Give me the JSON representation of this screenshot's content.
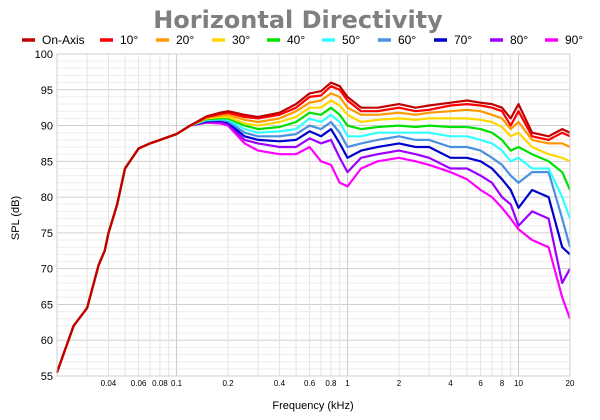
{
  "chart_data": {
    "type": "line",
    "title": "Horizontal Directivity",
    "xlabel": "Frequency (kHz)",
    "ylabel": "SPL (dB)",
    "xscale": "log",
    "xlim": [
      0.02,
      20
    ],
    "ylim": [
      55,
      100
    ],
    "yticks": [
      55,
      60,
      65,
      70,
      75,
      80,
      85,
      90,
      95,
      100
    ],
    "xtick_values": [
      0.04,
      0.06,
      0.08,
      0.1,
      0.2,
      0.4,
      0.6,
      0.8,
      1,
      2,
      4,
      6,
      8,
      10,
      20
    ],
    "xtick_labels": [
      "0.04",
      "0.06",
      "0.08",
      "0.1",
      "0.2",
      "0.4",
      "0.6",
      "0.8",
      "1",
      "2",
      "4",
      "6",
      "8",
      "10",
      "20"
    ],
    "grid": true,
    "legend_position": "top",
    "x": [
      0.02,
      0.025,
      0.03,
      0.035,
      0.038,
      0.04,
      0.045,
      0.05,
      0.06,
      0.07,
      0.08,
      0.1,
      0.12,
      0.15,
      0.18,
      0.2,
      0.25,
      0.3,
      0.4,
      0.5,
      0.6,
      0.7,
      0.8,
      0.9,
      1,
      1.2,
      1.5,
      2,
      2.5,
      3,
      4,
      5,
      6,
      7,
      8,
      9,
      10,
      12,
      15,
      18,
      20
    ],
    "series": [
      {
        "name": "On-Axis",
        "color": "#c00000",
        "values": [
          55.5,
          62,
          64.5,
          70.5,
          72.5,
          75,
          79,
          84,
          86.8,
          87.5,
          88,
          88.8,
          90,
          91.3,
          91.8,
          92,
          91.5,
          91.2,
          91.8,
          93,
          94.5,
          94.8,
          96,
          95.5,
          94,
          92.5,
          92.5,
          93,
          92.5,
          92.8,
          93.2,
          93.5,
          93.2,
          93,
          92.5,
          91,
          93,
          89,
          88.5,
          89.5,
          89
        ]
      },
      {
        "name": "10°",
        "color": "#ff0000",
        "values": [
          55.5,
          62,
          64.5,
          70.5,
          72.5,
          75,
          79,
          84,
          86.8,
          87.5,
          88,
          88.8,
          90,
          91.2,
          91.6,
          91.8,
          91.2,
          91,
          91.5,
          92.5,
          94,
          94.2,
          95.5,
          95,
          93.5,
          92,
          92,
          92.5,
          92,
          92.2,
          92.8,
          93,
          92.8,
          92.5,
          92,
          90,
          92,
          88.5,
          88,
          89,
          88.5
        ]
      },
      {
        "name": "20°",
        "color": "#ff9900",
        "values": [
          55.5,
          62,
          64.5,
          70.5,
          72.5,
          75,
          79,
          84,
          86.8,
          87.5,
          88,
          88.8,
          90,
          91.1,
          91.4,
          91.5,
          90.8,
          90.5,
          91,
          92,
          93.2,
          93.5,
          94.5,
          94,
          92.5,
          91.5,
          91.5,
          91.8,
          91.5,
          91.8,
          92,
          92.2,
          92,
          91.5,
          91,
          89.5,
          90.5,
          88,
          87.5,
          87.5,
          87
        ]
      },
      {
        "name": "30°",
        "color": "#ffd700",
        "values": [
          55.5,
          62,
          64.5,
          70.5,
          72.5,
          75,
          79,
          84,
          86.8,
          87.5,
          88,
          88.8,
          90,
          91,
          91.2,
          91.2,
          90.3,
          90,
          90.5,
          91.2,
          92.5,
          92.5,
          93.5,
          92.8,
          91.5,
          90.5,
          90.8,
          91,
          90.8,
          91,
          91,
          91,
          90.8,
          90.5,
          89.8,
          88.5,
          89,
          87,
          86,
          85.5,
          85
        ]
      },
      {
        "name": "40°",
        "color": "#00e000",
        "values": [
          55.5,
          62,
          64.5,
          70.5,
          72.5,
          75,
          79,
          84,
          86.8,
          87.5,
          88,
          88.8,
          90,
          90.9,
          91,
          91,
          90,
          89.5,
          89.8,
          90.5,
          91.8,
          91.5,
          92.5,
          91.5,
          90,
          89.5,
          89.8,
          90,
          89.8,
          90,
          89.8,
          89.8,
          89.5,
          89,
          88,
          86.5,
          87,
          86,
          85,
          83.5,
          81
        ]
      },
      {
        "name": "50°",
        "color": "#33ffff",
        "values": [
          55.5,
          62,
          64.5,
          70.5,
          72.5,
          75,
          79,
          84,
          86.8,
          87.5,
          88,
          88.8,
          90,
          90.8,
          90.9,
          90.8,
          89.5,
          89,
          89.2,
          89.5,
          91,
          90.5,
          91.5,
          90.5,
          88.5,
          88.5,
          89,
          89,
          89,
          89,
          88.5,
          88.5,
          88,
          87.5,
          86.5,
          85,
          85.5,
          84,
          84,
          80,
          77
        ]
      },
      {
        "name": "60°",
        "color": "#4a90e2",
        "values": [
          55.5,
          62,
          64.5,
          70.5,
          72.5,
          75,
          79,
          84,
          86.8,
          87.5,
          88,
          88.8,
          90,
          90.7,
          90.8,
          90.6,
          89,
          88.5,
          88.5,
          88.8,
          90,
          89.5,
          90.5,
          89,
          87,
          87.5,
          88,
          88.5,
          88,
          88,
          87,
          87,
          86.5,
          85.5,
          84.5,
          83,
          82,
          83.5,
          83.5,
          77,
          73
        ]
      },
      {
        "name": "70°",
        "color": "#0000cc",
        "values": [
          55.5,
          62,
          64.5,
          70.5,
          72.5,
          75,
          79,
          84,
          86.8,
          87.5,
          88,
          88.8,
          90,
          90.6,
          90.7,
          90.4,
          88.5,
          88,
          87.8,
          88,
          89.2,
          88.5,
          89.5,
          87.5,
          85.5,
          86.5,
          87,
          87.5,
          87,
          87,
          85.5,
          85.5,
          85,
          84,
          82.5,
          81,
          78.5,
          81,
          80,
          73,
          72
        ]
      },
      {
        "name": "80°",
        "color": "#9b00ff",
        "values": [
          55.5,
          62,
          64.5,
          70.5,
          72.5,
          75,
          79,
          84,
          86.8,
          87.5,
          88,
          88.8,
          90,
          90.5,
          90.5,
          90.2,
          88,
          87.5,
          87,
          87,
          88.2,
          87.5,
          88,
          85.5,
          83.5,
          85.5,
          86,
          86.5,
          86,
          85.5,
          84,
          84,
          83,
          82,
          80,
          79,
          76,
          78,
          77,
          68,
          70
        ]
      },
      {
        "name": "90°",
        "color": "#ff00ff",
        "values": [
          55.5,
          62,
          64.5,
          70.5,
          72.5,
          75,
          79,
          84,
          86.8,
          87.5,
          88,
          88.8,
          90,
          90.4,
          90.3,
          90,
          87.5,
          86.5,
          86,
          86,
          87,
          85,
          84.5,
          82,
          81.5,
          84,
          85,
          85.5,
          85,
          84.5,
          83.5,
          82.5,
          81,
          80,
          78.5,
          77,
          75.5,
          74,
          73,
          66,
          63
        ]
      }
    ]
  }
}
